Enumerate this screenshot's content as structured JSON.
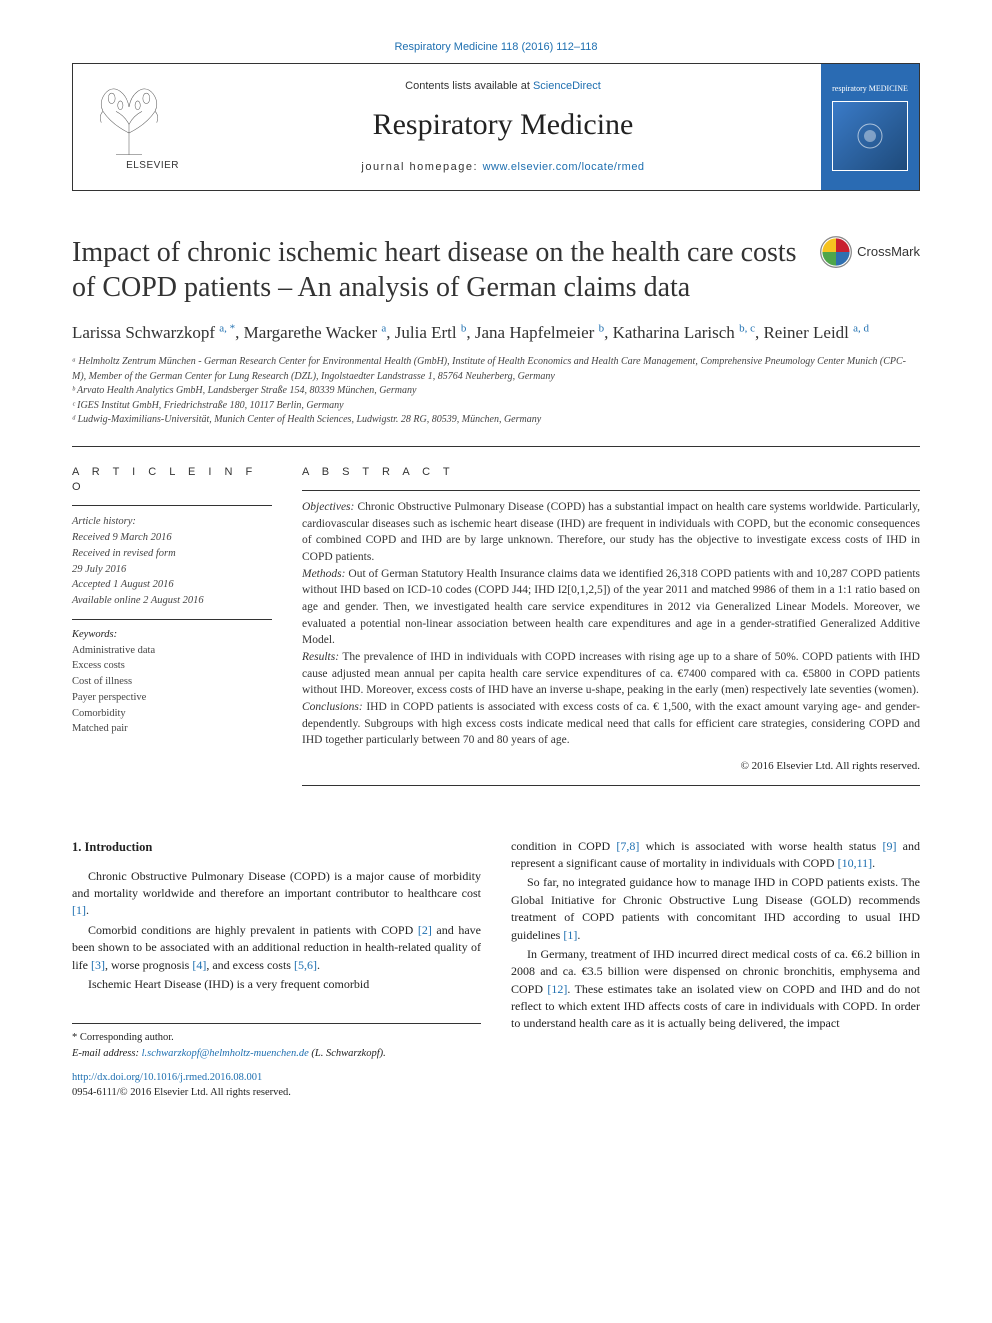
{
  "header": {
    "citation_link": "Respiratory Medicine 118 (2016) 112–118",
    "contents_prefix": "Contents lists available at ",
    "contents_link": "ScienceDirect",
    "journal_name": "Respiratory Medicine",
    "homepage_label": "journal homepage: ",
    "homepage_url": "www.elsevier.com/locate/rmed",
    "publisher_logo": "ELSEVIER",
    "cover_title": "respiratory MEDICINE"
  },
  "crossmark": {
    "label": "CrossMark"
  },
  "article": {
    "title": "Impact of chronic ischemic heart disease on the health care costs of COPD patients – An analysis of German claims data"
  },
  "authors_html": "Larissa Schwarzkopf <sup>a, *</sup>, Margarethe Wacker <sup>a</sup>, Julia Ertl <sup>b</sup>, Jana Hapfelmeier <sup>b</sup>, Katharina Larisch <sup>b, c</sup>, Reiner Leidl <sup>a, d</sup>",
  "affiliations": [
    "ᵃ Helmholtz Zentrum München - German Research Center for Environmental Health (GmbH), Institute of Health Economics and Health Care Management, Comprehensive Pneumology Center Munich (CPC-M), Member of the German Center for Lung Research (DZL), Ingolstaedter Landstrasse 1, 85764 Neuherberg, Germany",
    "ᵇ Arvato Health Analytics GmbH, Landsberger Straße 154, 80339 München, Germany",
    "ᶜ IGES Institut GmbH, Friedrichstraße 180, 10117 Berlin, Germany",
    "ᵈ Ludwig-Maximilians-Universität, Munich Center of Health Sciences, Ludwigstr. 28 RG, 80539, München, Germany"
  ],
  "article_info": {
    "heading": "A R T I C L E  I N F O",
    "history_label": "Article history:",
    "history": [
      "Received 9 March 2016",
      "Received in revised form",
      "29 July 2016",
      "Accepted 1 August 2016",
      "Available online 2 August 2016"
    ],
    "keywords_label": "Keywords:",
    "keywords": [
      "Administrative data",
      "Excess costs",
      "Cost of illness",
      "Payer perspective",
      "Comorbidity",
      "Matched pair"
    ]
  },
  "abstract": {
    "heading": "A B S T R A C T",
    "objectives_label": "Objectives:",
    "objectives": " Chronic Obstructive Pulmonary Disease (COPD) has a substantial impact on health care systems worldwide. Particularly, cardiovascular diseases such as ischemic heart disease (IHD) are frequent in individuals with COPD, but the economic consequences of combined COPD and IHD are by large unknown. Therefore, our study has the objective to investigate excess costs of IHD in COPD patients.",
    "methods_label": "Methods:",
    "methods": " Out of German Statutory Health Insurance claims data we identified 26,318 COPD patients with and 10,287 COPD patients without IHD based on ICD-10 codes (COPD J44; IHD I2[0,1,2,5]) of the year 2011 and matched 9986 of them in a 1:1 ratio based on age and gender. Then, we investigated health care service expenditures in 2012 via Generalized Linear Models. Moreover, we evaluated a potential non-linear association between health care expenditures and age in a gender-stratified Generalized Additive Model.",
    "results_label": "Results:",
    "results": " The prevalence of IHD in individuals with COPD increases with rising age up to a share of 50%. COPD patients with IHD cause adjusted mean annual per capita health care service expenditures of ca. €7400 compared with ca. €5800 in COPD patients without IHD. Moreover, excess costs of IHD have an inverse u-shape, peaking in the early (men) respectively late seventies (women).",
    "conclusions_label": "Conclusions:",
    "conclusions": " IHD in COPD patients is associated with excess costs of ca. € 1,500, with the exact amount varying age- and gender-dependently. Subgroups with high excess costs indicate medical need that calls for efficient care strategies, considering COPD and IHD together particularly between 70 and 80 years of age.",
    "copyright": "© 2016 Elsevier Ltd. All rights reserved."
  },
  "introduction": {
    "heading": "1.  Introduction",
    "p1_a": "Chronic Obstructive Pulmonary Disease (COPD) is a major cause of morbidity and mortality worldwide and therefore an important contributor to healthcare cost ",
    "r1": "[1]",
    "p1_b": ".",
    "p2_a": "Comorbid conditions are highly prevalent in patients with COPD ",
    "r2": "[2]",
    "p2_b": " and have been shown to be associated with an additional reduction in health-related quality of life ",
    "r3": "[3]",
    "p2_c": ", worse prognosis ",
    "r4": "[4]",
    "p2_d": ", and excess costs ",
    "r56": "[5,6]",
    "p2_e": ".",
    "p3": "Ischemic Heart Disease (IHD) is a very frequent comorbid",
    "p4_a": "condition in COPD ",
    "r78": "[7,8]",
    "p4_b": " which is associated with worse health status ",
    "r9": "[9]",
    "p4_c": " and represent a significant cause of mortality in individuals with COPD ",
    "r1011": "[10,11]",
    "p4_d": ".",
    "p5_a": "So far, no integrated guidance how to manage IHD in COPD patients exists. The Global Initiative for Chronic Obstructive Lung Disease (GOLD) recommends treatment of COPD patients with concomitant IHD according to usual IHD guidelines ",
    "r1b": "[1]",
    "p5_b": ".",
    "p6_a": "In Germany, treatment of IHD incurred direct medical costs of ca. €6.2 billion in 2008 and ca. €3.5 billion were dispensed on chronic bronchitis, emphysema and COPD ",
    "r12": "[12]",
    "p6_b": ". These estimates take an isolated view on COPD and IHD and do not reflect to which extent IHD affects costs of care in individuals with COPD. In order to understand health care as it is actually being delivered, the impact"
  },
  "footer": {
    "corr_label": "* Corresponding author.",
    "email_label": "E-mail address: ",
    "email": "l.schwarzkopf@helmholtz-muenchen.de",
    "email_suffix": " (L. Schwarzkopf).",
    "doi": "http://dx.doi.org/10.1016/j.rmed.2016.08.001",
    "issn_copyright": "0954-6111/© 2016 Elsevier Ltd. All rights reserved."
  },
  "colors": {
    "link": "#1e6fb0",
    "text": "#333333",
    "cover_bg": "#2a6bb3",
    "crossmark_red": "#c8202f",
    "crossmark_yellow": "#f6c320",
    "crossmark_blue": "#2f6fb0",
    "crossmark_green": "#4ea64a"
  }
}
